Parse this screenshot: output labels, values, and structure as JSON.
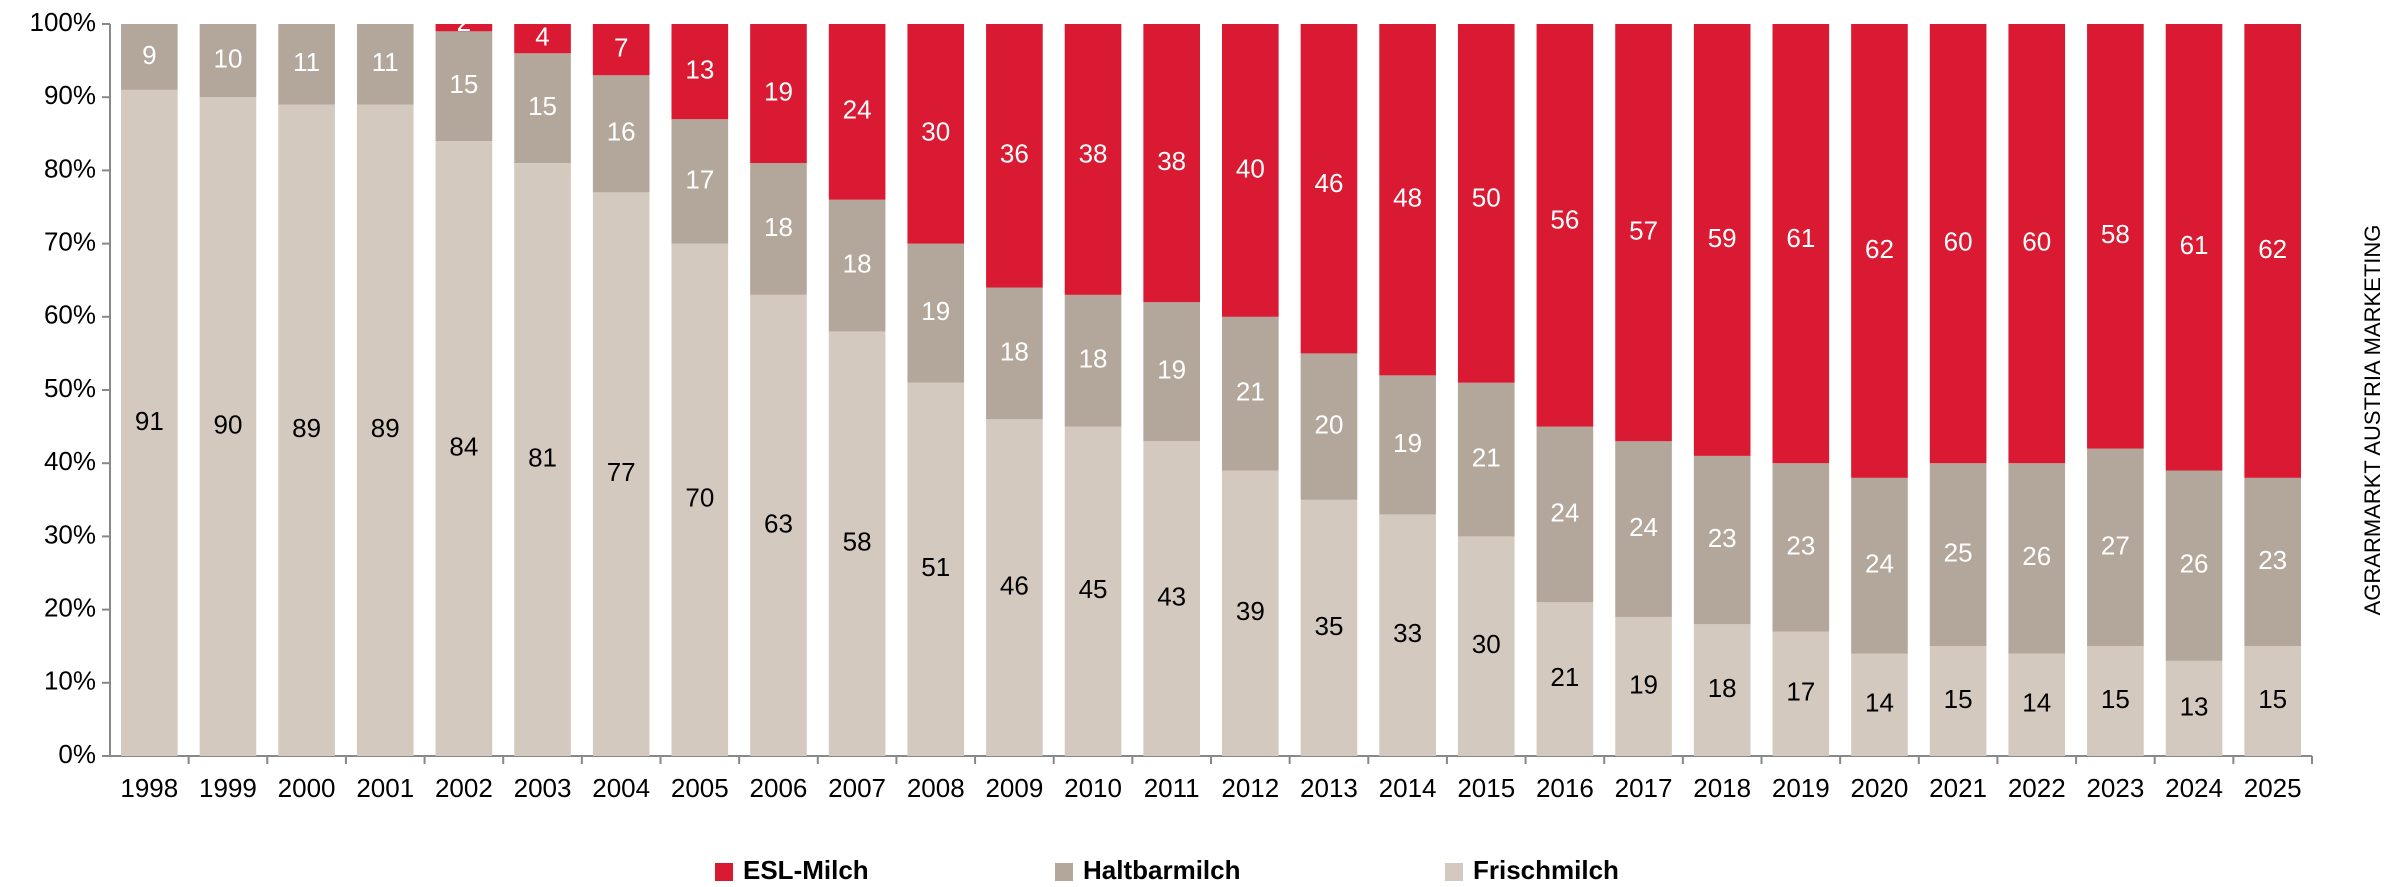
{
  "chart_data": {
    "type": "stacked_bar",
    "categories": [
      "1998",
      "1999",
      "2000",
      "2001",
      "2002",
      "2003",
      "2004",
      "2005",
      "2006",
      "2007",
      "2008",
      "2009",
      "2010",
      "2011",
      "2012",
      "2013",
      "2014",
      "2015",
      "2016",
      "2017",
      "2018",
      "2019",
      "2020",
      "2021",
      "2022",
      "2023",
      "2024",
      "2025"
    ],
    "series": [
      {
        "name": "Frischmilch",
        "color": "#d4c9bf",
        "values": [
          91,
          90,
          89,
          89,
          84,
          81,
          77,
          70,
          63,
          58,
          51,
          46,
          45,
          43,
          39,
          35,
          33,
          30,
          21,
          19,
          18,
          17,
          14,
          15,
          14,
          15,
          13,
          15
        ]
      },
      {
        "name": "Haltbarmilch",
        "color": "#b3a69a",
        "values": [
          9,
          10,
          11,
          11,
          15,
          15,
          16,
          17,
          18,
          18,
          19,
          18,
          18,
          19,
          21,
          20,
          19,
          21,
          24,
          24,
          23,
          23,
          24,
          25,
          26,
          27,
          26,
          23
        ]
      },
      {
        "name": "ESL-Milch",
        "color": "#d91a32",
        "values": [
          null,
          null,
          null,
          null,
          2,
          4,
          7,
          13,
          19,
          24,
          30,
          36,
          38,
          38,
          40,
          46,
          48,
          50,
          56,
          57,
          59,
          61,
          62,
          60,
          60,
          58,
          61,
          62
        ]
      }
    ],
    "ylim": [
      0,
      100
    ],
    "yticks": [
      {
        "value": 0,
        "label": "0%"
      },
      {
        "value": 10,
        "label": "10%"
      },
      {
        "value": 20,
        "label": "20%"
      },
      {
        "value": 30,
        "label": "30%"
      },
      {
        "value": 40,
        "label": "40%"
      },
      {
        "value": 50,
        "label": "50%"
      },
      {
        "value": 60,
        "label": "60%"
      },
      {
        "value": 70,
        "label": "70%"
      },
      {
        "value": 80,
        "label": "80%"
      },
      {
        "value": 90,
        "label": "90%"
      },
      {
        "value": 100,
        "label": "100%"
      }
    ],
    "source": "AGRARMARKT AUSTRIA MARKETING",
    "legend": "bottom"
  }
}
